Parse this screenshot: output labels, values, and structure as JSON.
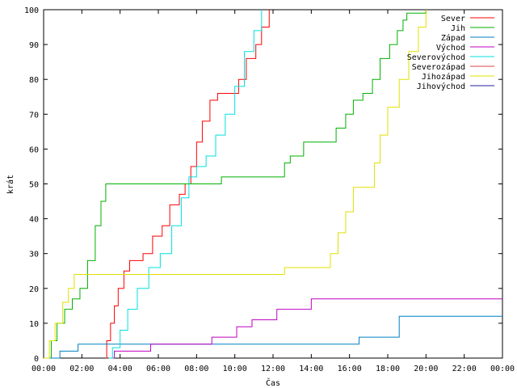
{
  "chart_data": {
    "type": "line",
    "title": "",
    "xlabel": "Čas",
    "ylabel": "krát",
    "xlim": [
      0,
      24
    ],
    "ylim": [
      0,
      100
    ],
    "x_ticks": [
      "00:00",
      "02:00",
      "04:00",
      "06:00",
      "08:00",
      "10:00",
      "12:00",
      "14:00",
      "16:00",
      "18:00",
      "20:00",
      "22:00",
      "00:00"
    ],
    "y_ticks": [
      "0",
      "10",
      "20",
      "30",
      "40",
      "50",
      "60",
      "70",
      "80",
      "90",
      "100"
    ],
    "grid": false,
    "legend_position": "top-right",
    "series": [
      {
        "name": "Sever",
        "color": "#ff0000",
        "points": [
          [
            3.25,
            0
          ],
          [
            3.3,
            5
          ],
          [
            3.5,
            10
          ],
          [
            3.7,
            15
          ],
          [
            3.9,
            20
          ],
          [
            4.2,
            25
          ],
          [
            4.5,
            28
          ],
          [
            5.2,
            30
          ],
          [
            5.7,
            35
          ],
          [
            6.2,
            38
          ],
          [
            6.6,
            44
          ],
          [
            7.1,
            47
          ],
          [
            7.4,
            50
          ],
          [
            7.7,
            55
          ],
          [
            8.0,
            62
          ],
          [
            8.3,
            68
          ],
          [
            8.7,
            74
          ],
          [
            9.1,
            76
          ],
          [
            9.8,
            76
          ],
          [
            10.2,
            80
          ],
          [
            10.6,
            86
          ],
          [
            11.1,
            90
          ],
          [
            11.4,
            95
          ],
          [
            11.8,
            100
          ]
        ]
      },
      {
        "name": "Jih",
        "color": "#00b000",
        "points": [
          [
            0,
            0
          ],
          [
            0.4,
            5
          ],
          [
            0.7,
            10
          ],
          [
            1.1,
            14
          ],
          [
            1.5,
            17
          ],
          [
            1.9,
            20
          ],
          [
            2.3,
            28
          ],
          [
            2.7,
            38
          ],
          [
            3.0,
            45
          ],
          [
            3.25,
            50
          ],
          [
            8.0,
            50
          ],
          [
            9.3,
            52
          ],
          [
            12.3,
            52
          ],
          [
            12.6,
            56
          ],
          [
            12.9,
            58
          ],
          [
            13.6,
            62
          ],
          [
            14.8,
            62
          ],
          [
            15.3,
            66
          ],
          [
            15.8,
            70
          ],
          [
            16.2,
            74
          ],
          [
            16.7,
            76
          ],
          [
            17.2,
            80
          ],
          [
            17.6,
            86
          ],
          [
            18.1,
            90
          ],
          [
            18.5,
            94
          ],
          [
            18.8,
            97
          ],
          [
            19.0,
            99
          ],
          [
            19.5,
            99
          ],
          [
            20.0,
            100
          ]
        ]
      },
      {
        "name": "Západ",
        "color": "#0080c0",
        "points": [
          [
            0,
            0
          ],
          [
            0.8,
            0
          ],
          [
            0.85,
            2
          ],
          [
            1.75,
            2
          ],
          [
            1.8,
            4
          ],
          [
            16.3,
            4
          ],
          [
            16.5,
            6
          ],
          [
            18.5,
            6
          ],
          [
            18.6,
            12
          ],
          [
            24,
            12
          ]
        ]
      },
      {
        "name": "Východ",
        "color": "#c000c0",
        "points": [
          [
            3.6,
            0
          ],
          [
            3.7,
            2
          ],
          [
            5.5,
            2
          ],
          [
            5.6,
            4
          ],
          [
            8.7,
            4
          ],
          [
            8.8,
            6
          ],
          [
            10.0,
            6
          ],
          [
            10.1,
            9
          ],
          [
            10.8,
            9
          ],
          [
            10.9,
            11
          ],
          [
            12.1,
            11
          ],
          [
            12.2,
            14
          ],
          [
            13.9,
            14
          ],
          [
            14.0,
            17
          ],
          [
            24,
            17
          ]
        ]
      },
      {
        "name": "Severovýchod",
        "color": "#00e0e0",
        "points": [
          [
            3.4,
            0
          ],
          [
            3.6,
            3
          ],
          [
            4.0,
            8
          ],
          [
            4.4,
            14
          ],
          [
            4.9,
            20
          ],
          [
            5.5,
            26
          ],
          [
            6.1,
            30
          ],
          [
            6.7,
            38
          ],
          [
            7.2,
            46
          ],
          [
            7.6,
            52
          ],
          [
            8.0,
            55
          ],
          [
            8.5,
            58
          ],
          [
            9.0,
            64
          ],
          [
            9.5,
            70
          ],
          [
            10.0,
            78
          ],
          [
            10.5,
            88
          ],
          [
            11.0,
            94
          ],
          [
            11.4,
            100
          ]
        ]
      },
      {
        "name": "Severozápad",
        "color": "#e04040",
        "points": []
      },
      {
        "name": "Jihozápad",
        "color": "#e0e000",
        "points": [
          [
            0,
            0
          ],
          [
            0.3,
            5
          ],
          [
            0.6,
            10
          ],
          [
            1.0,
            16
          ],
          [
            1.3,
            20
          ],
          [
            1.6,
            24
          ],
          [
            12.5,
            24
          ],
          [
            12.6,
            26
          ],
          [
            14.6,
            26
          ],
          [
            15.0,
            30
          ],
          [
            15.4,
            36
          ],
          [
            15.8,
            42
          ],
          [
            16.2,
            49
          ],
          [
            17.0,
            49
          ],
          [
            17.3,
            56
          ],
          [
            17.6,
            64
          ],
          [
            18.0,
            72
          ],
          [
            18.6,
            80
          ],
          [
            19.1,
            88
          ],
          [
            19.6,
            95
          ],
          [
            20.0,
            100
          ]
        ]
      },
      {
        "name": "Jihovýchod",
        "color": "#2020a0",
        "points": []
      }
    ]
  }
}
